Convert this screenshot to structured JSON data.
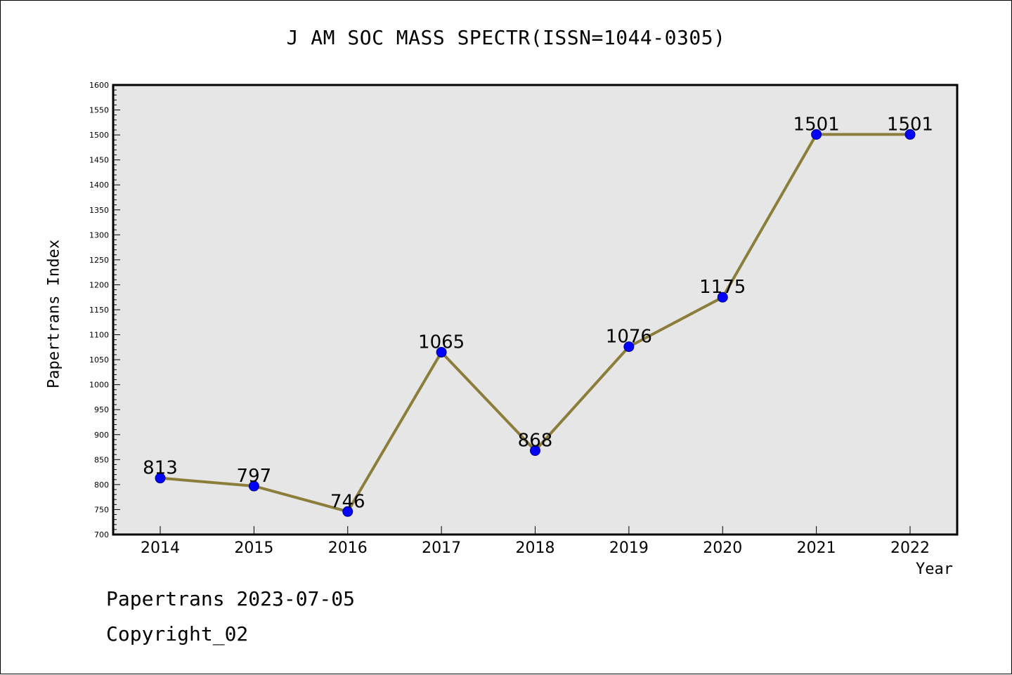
{
  "chart_data": {
    "type": "line",
    "title": "J AM SOC MASS SPECTR(ISSN=1044-0305)",
    "xlabel": "Year",
    "ylabel": "Papertrans Index",
    "categories": [
      "2014",
      "2015",
      "2016",
      "2017",
      "2018",
      "2019",
      "2020",
      "2021",
      "2022"
    ],
    "series": [
      {
        "values": [
          813,
          797,
          746,
          1065,
          868,
          1076,
          1175,
          1501,
          1501
        ]
      }
    ],
    "data_labels": [
      "813",
      "797",
      "746",
      "1065",
      "868",
      "1076",
      "1175",
      "1501",
      "1501"
    ],
    "ylim": [
      700,
      1600
    ],
    "yticks": [
      700,
      750,
      800,
      850,
      900,
      950,
      1000,
      1050,
      1100,
      1150,
      1200,
      1250,
      1300,
      1350,
      1400,
      1450,
      1500,
      1550,
      1600
    ],
    "grid": false,
    "legend": "none",
    "colors": {
      "line": "#8b7d3a",
      "marker_fill": "#0000ff",
      "marker_stroke": "#00008b",
      "plot_background": "#e6e6e6"
    }
  },
  "footer": {
    "line1": "Papertrans 2023-07-05",
    "line2": "Copyright_02"
  }
}
